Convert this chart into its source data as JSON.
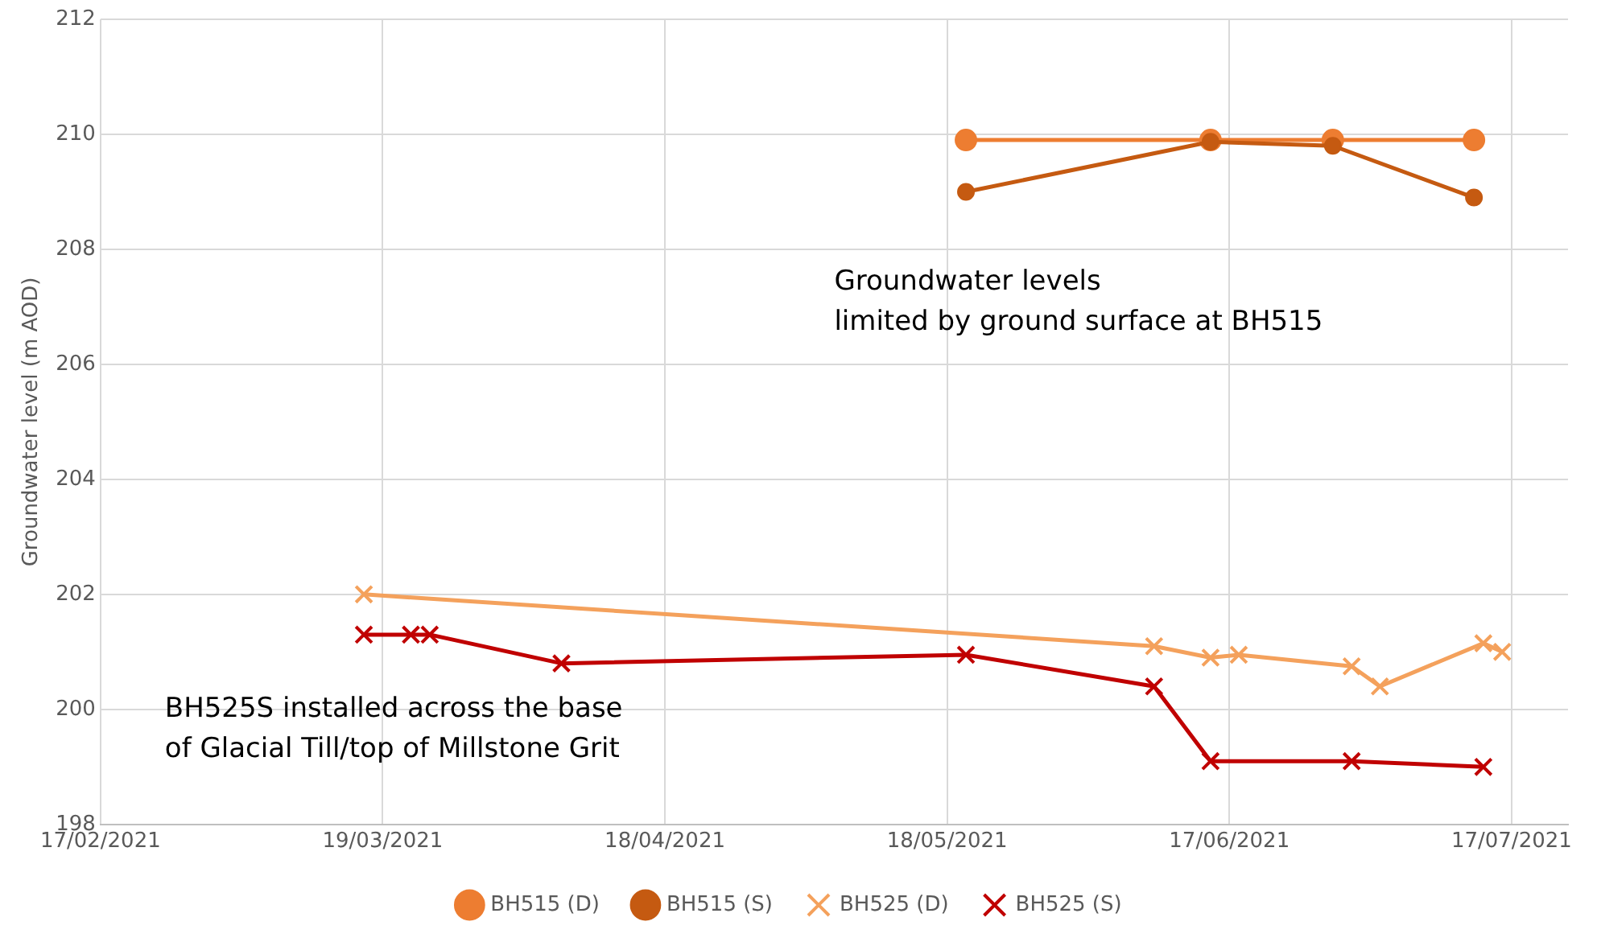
{
  "chart_data": {
    "type": "line",
    "ylabel": "Groundwater level (m AOD)",
    "xlim": [
      "2021-02-17",
      "2021-07-23"
    ],
    "xticks": [
      {
        "value": "2021-02-17",
        "label": "17/02/2021"
      },
      {
        "value": "2021-03-19",
        "label": "19/03/2021"
      },
      {
        "value": "2021-04-18",
        "label": "18/04/2021"
      },
      {
        "value": "2021-05-18",
        "label": "18/05/2021"
      },
      {
        "value": "2021-06-17",
        "label": "17/06/2021"
      },
      {
        "value": "2021-07-17",
        "label": "17/07/2021"
      }
    ],
    "ylim": [
      198,
      212
    ],
    "yticks": [
      198,
      200,
      202,
      204,
      206,
      208,
      210,
      212
    ],
    "grid": true,
    "legend": "bottom",
    "annotations": [
      "Groundwater levels\nlimited by ground surface at BH515",
      "BH525S installed across the base\nof Glacial Till/top of Millstone Grit"
    ],
    "series": [
      {
        "name": "BH515 (D)",
        "color": "#ed7d31",
        "marker": "circle",
        "x": [
          "2021-05-20",
          "2021-06-15",
          "2021-06-28",
          "2021-07-13"
        ],
        "values": [
          209.9,
          209.9,
          209.9,
          209.9
        ]
      },
      {
        "name": "BH515 (S)",
        "color": "#c55a11",
        "marker": "circle",
        "x": [
          "2021-05-20",
          "2021-06-15",
          "2021-06-28",
          "2021-07-13"
        ],
        "values": [
          209.0,
          209.87,
          209.8,
          208.9
        ]
      },
      {
        "name": "BH525 (D)",
        "color": "#f4a15c",
        "marker": "cross",
        "x": [
          "2021-03-17",
          "2021-06-09",
          "2021-06-15",
          "2021-06-18",
          "2021-06-30",
          "2021-07-03",
          "2021-07-14",
          "2021-07-16"
        ],
        "values": [
          202.0,
          201.1,
          200.9,
          200.95,
          200.75,
          200.4,
          201.15,
          201.0
        ]
      },
      {
        "name": "BH525 (S)",
        "color": "#c00000",
        "marker": "cross",
        "x": [
          "2021-03-17",
          "2021-03-22",
          "2021-03-24",
          "2021-04-07",
          "2021-05-20",
          "2021-06-09",
          "2021-06-15",
          "2021-06-30",
          "2021-07-14"
        ],
        "values": [
          201.3,
          201.3,
          201.3,
          200.8,
          200.95,
          200.4,
          199.1,
          199.1,
          199.0
        ]
      }
    ]
  }
}
